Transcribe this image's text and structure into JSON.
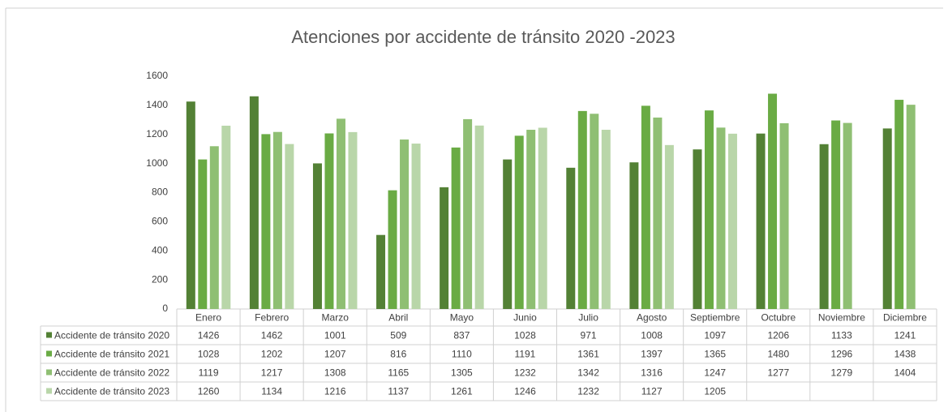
{
  "chart_data": {
    "type": "bar",
    "title": "Atenciones por accidente de tránsito 2020 -2023",
    "categories": [
      "Enero",
      "Febrero",
      "Marzo",
      "Abril",
      "Mayo",
      "Junio",
      "Julio",
      "Agosto",
      "Septiembre",
      "Octubre",
      "Noviembre",
      "Diciembre"
    ],
    "series": [
      {
        "name": "Accidente de tránsito 2020",
        "color": "#538135",
        "values": [
          1426,
          1462,
          1001,
          509,
          837,
          1028,
          971,
          1008,
          1097,
          1206,
          1133,
          1241
        ]
      },
      {
        "name": "Accidente de tránsito 2021",
        "color": "#6aab44",
        "values": [
          1028,
          1202,
          1207,
          816,
          1110,
          1191,
          1361,
          1397,
          1365,
          1480,
          1296,
          1438
        ]
      },
      {
        "name": "Accidente de tránsito 2022",
        "color": "#8fbf73",
        "values": [
          1119,
          1217,
          1308,
          1165,
          1305,
          1232,
          1342,
          1316,
          1247,
          1277,
          1279,
          1404
        ]
      },
      {
        "name": "Accidente de tránsito 2023",
        "color": "#b9d6a9",
        "values": [
          1260,
          1134,
          1216,
          1137,
          1261,
          1246,
          1232,
          1127,
          1205,
          null,
          null,
          null
        ]
      }
    ],
    "ylim": [
      0,
      1600
    ],
    "yticks": [
      0,
      200,
      400,
      600,
      800,
      1000,
      1200,
      1400,
      1600
    ],
    "grid": false
  }
}
